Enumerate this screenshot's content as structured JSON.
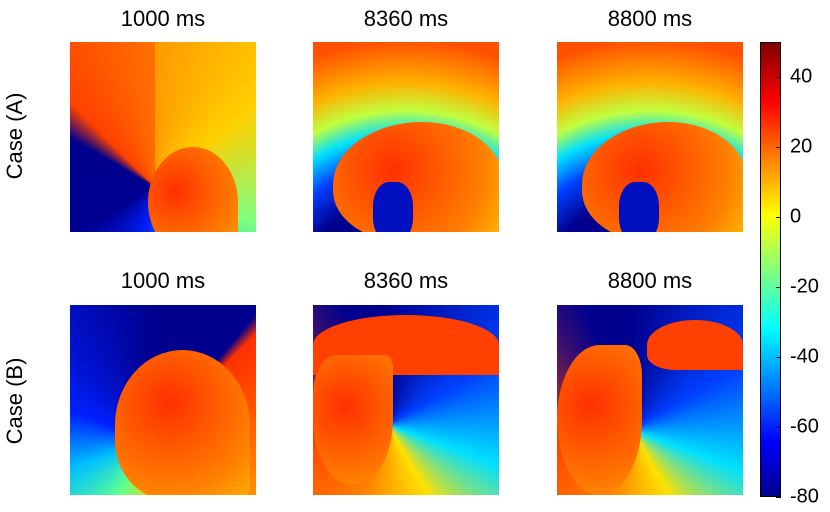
{
  "columns": [
    "1000 ms",
    "8360 ms",
    "8800 ms"
  ],
  "rows": [
    {
      "label": "Case (A)",
      "titles": [
        "1000 ms",
        "8360 ms",
        "8800 ms"
      ]
    },
    {
      "label": "Case (B)",
      "titles": [
        "1000 ms",
        "8360 ms",
        "8800 ms"
      ]
    }
  ],
  "colorbar": {
    "colormap": "jet",
    "range": [
      -80,
      50
    ],
    "ticks": [
      "40",
      "20",
      "0",
      "-20",
      "-40",
      "-60",
      "-80"
    ],
    "tick_values": [
      40,
      20,
      0,
      -20,
      -40,
      -60,
      -80
    ]
  }
}
